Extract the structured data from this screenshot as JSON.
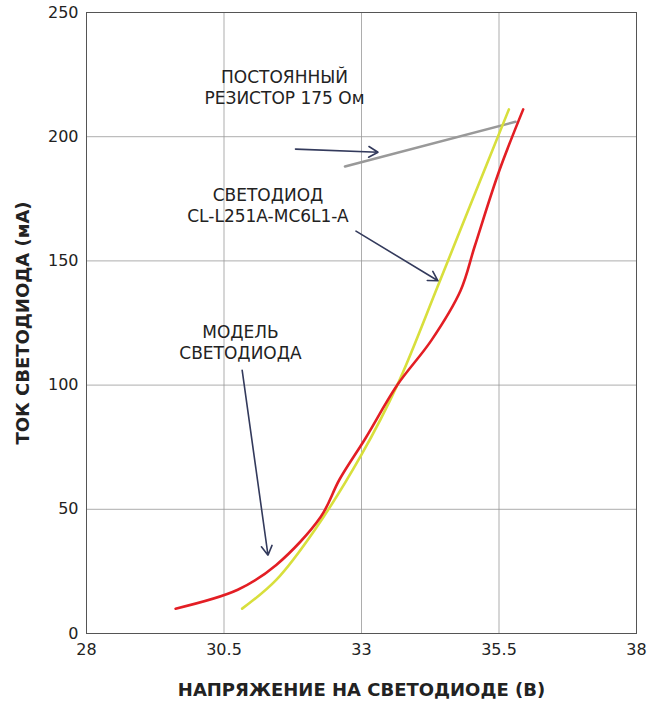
{
  "chart_data": {
    "type": "line",
    "x_label": "НАПРЯЖЕНИЕ НА СВЕТОДИОДЕ (В)",
    "y_label": "ТОК СВЕТОДИОДА (мА)",
    "xlim": [
      28,
      38
    ],
    "xticks": [
      28,
      30.5,
      33,
      35.5,
      38
    ],
    "ylim": [
      0,
      250
    ],
    "yticks": [
      0,
      50,
      100,
      150,
      200,
      250
    ],
    "grid": true,
    "series": [
      {
        "name": "ПОСТОЯННЫЙ\nРЕЗИСТОР 175 Ом",
        "color": "#999999",
        "x": [
          32.7,
          35.8
        ],
        "values": [
          188,
          206
        ]
      },
      {
        "name": "СВЕТОДИОД\nCL-L251A-MC6L1-A",
        "color": "#d8df3c",
        "x": [
          30.83,
          31.45,
          32.15,
          33.0,
          33.65,
          34.39,
          34.97,
          35.68
        ],
        "values": [
          10,
          21.6,
          41.7,
          72,
          100,
          140,
          172,
          211
        ]
      },
      {
        "name": "МОДЕЛЬ\nСВЕТОДИОДА",
        "color": "#e31e24",
        "x": [
          29.62,
          30.75,
          31.45,
          32.26,
          32.6,
          33.07,
          33.65,
          34.27,
          34.8,
          35.06,
          35.5,
          35.94
        ],
        "values": [
          10,
          17.6,
          27.6,
          47,
          62,
          78.5,
          100,
          118,
          138,
          156,
          186,
          211
        ]
      }
    ]
  }
}
